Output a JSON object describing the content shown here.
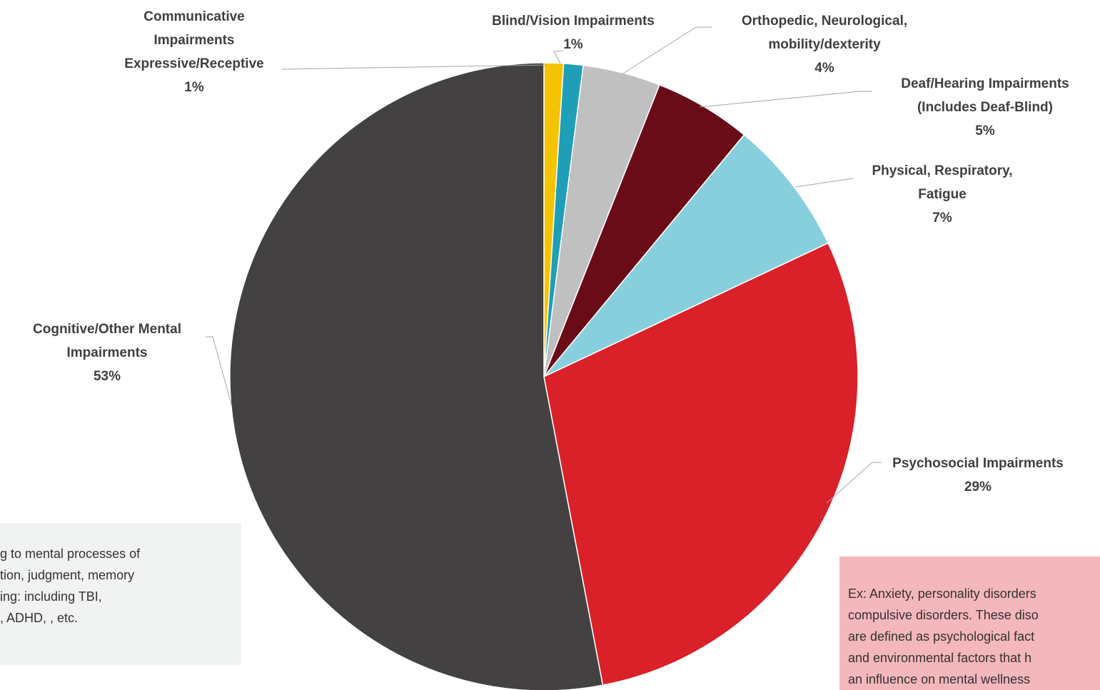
{
  "chart_data": {
    "type": "pie",
    "categories": [
      "Communicative Impairments Expressive/Receptive",
      "Blind/Vision Impairments",
      "Orthopedic, Neurological, mobility/dexterity",
      "Deaf/Hearing Impairments (Includes Deaf-Blind)",
      "Physical, Respiratory, Fatigue",
      "Psychosocial Impairments",
      "Cognitive/Other Mental Impairments"
    ],
    "values": [
      1,
      1,
      4,
      5,
      7,
      29,
      53
    ],
    "value_labels": [
      "1%",
      "1%",
      "4%",
      "5%",
      "7%",
      "29%",
      "53%"
    ],
    "colors": [
      "#f5c400",
      "#1f9eb8",
      "#c0c0c0",
      "#6a0c18",
      "#88cfde",
      "#da2028",
      "#434142"
    ],
    "start_angle": 0,
    "direction": "clockwise"
  },
  "notes": [
    {
      "lines": [
        "g to mental processes of",
        "tion, judgment, memory",
        "ing: including TBI,",
        ", ADHD, , etc."
      ]
    },
    {
      "lines": [
        "Ex: Anxiety, personality disorders",
        "compulsive disorders. These diso",
        "are defined as  psychological fact",
        "and environmental factors that h",
        "an influence  on mental wellness"
      ]
    }
  ]
}
